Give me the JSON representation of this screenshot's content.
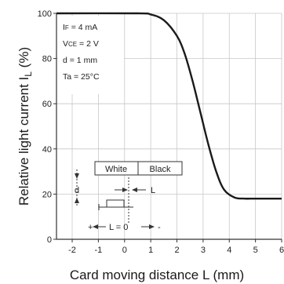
{
  "chart_data": {
    "type": "line",
    "xlabel": "Card moving distance L (mm)",
    "ylabel": "Relative light current  I",
    "ylabel_sub": "L",
    "ylabel_unit": " (%)",
    "xlim": [
      -2.6,
      6
    ],
    "ylim": [
      0,
      100
    ],
    "x_ticks": [
      -2,
      -1,
      0,
      1,
      2,
      3,
      4,
      5,
      6
    ],
    "y_ticks": [
      0,
      20,
      40,
      60,
      80,
      100
    ],
    "grid": true,
    "conditions": [
      {
        "base": "I",
        "sub": "F",
        "rest": " = 4 mA"
      },
      {
        "base": "V",
        "sub": "CE",
        "rest": " = 2 V"
      },
      {
        "base": "d",
        "sub": "",
        "rest": " = 1 mm"
      },
      {
        "base": "Ta",
        "sub": "",
        "rest": " = 25°C"
      }
    ],
    "series": [
      {
        "x": [
          -2.6,
          0.5,
          1.0,
          1.5,
          2.0,
          2.3,
          2.6,
          2.9,
          3.2,
          3.5,
          3.8,
          4.2,
          4.6,
          5.0,
          6.0
        ],
        "y": [
          100,
          100,
          99.5,
          97,
          90,
          82,
          70,
          56,
          42,
          30,
          22,
          18.5,
          18,
          18,
          18
        ]
      }
    ],
    "diagram": {
      "white_label": "White",
      "black_label": "Black",
      "d_label": "d",
      "l_label": "L",
      "l_zero_label": "L = 0",
      "plus_sign": "+",
      "minus_sign": "-"
    }
  }
}
